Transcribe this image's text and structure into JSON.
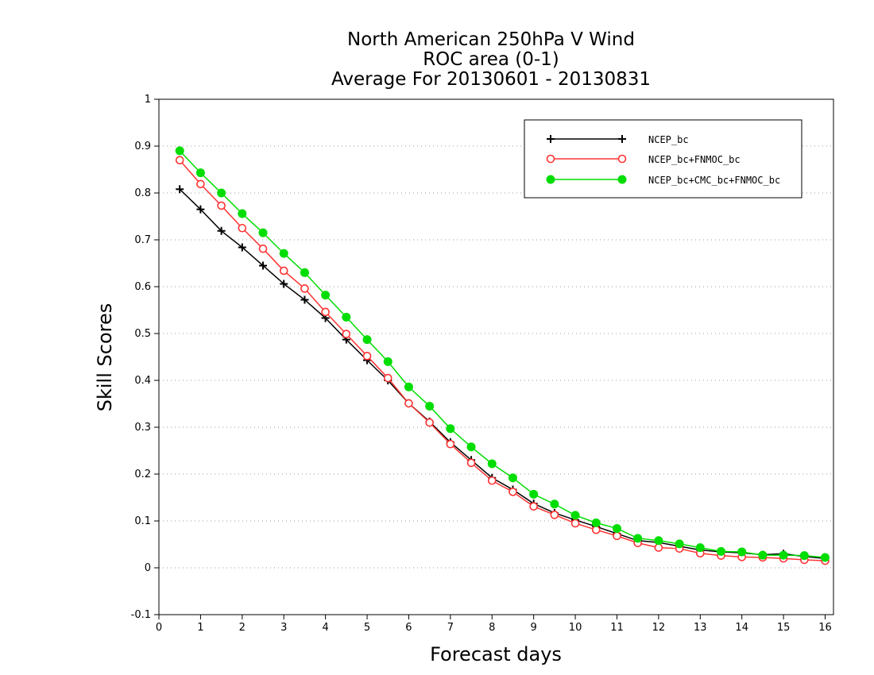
{
  "chart_data": {
    "type": "line",
    "title_lines": [
      "North American 250hPa V Wind",
      "ROC area (0-1)",
      "Average For 20130601 - 20130831"
    ],
    "xlabel": "Forecast days",
    "ylabel": "Skill Scores",
    "xlim": [
      0,
      16.2
    ],
    "ylim": [
      -0.1,
      1
    ],
    "x_ticks": [
      0,
      1,
      2,
      3,
      4,
      5,
      6,
      7,
      8,
      9,
      10,
      11,
      12,
      13,
      14,
      15,
      16
    ],
    "y_ticks": [
      -0.1,
      0,
      0.1,
      0.2,
      0.3,
      0.4,
      0.5,
      0.6,
      0.7,
      0.8,
      0.9,
      1
    ],
    "y_tick_labels": [
      "-0.1",
      "0",
      "0.1",
      "0.2",
      "0.3",
      "0.4",
      "0.5",
      "0.6",
      "0.7",
      "0.8",
      "0.9",
      "1"
    ],
    "grid": "horizontal dotted",
    "legend_position": "top-right",
    "x": [
      0.5,
      1,
      1.5,
      2,
      2.5,
      3,
      3.5,
      4,
      4.5,
      5,
      5.5,
      6,
      6.5,
      7,
      7.5,
      8,
      8.5,
      9,
      9.5,
      10,
      10.5,
      11,
      11.5,
      12,
      12.5,
      13,
      13.5,
      14,
      14.5,
      15,
      15.5,
      16
    ],
    "series": [
      {
        "name": "NCEP_bc",
        "color": "#000000",
        "marker": "plus",
        "values": [
          0.808,
          0.765,
          0.719,
          0.684,
          0.645,
          0.606,
          0.572,
          0.533,
          0.487,
          0.443,
          0.4,
          0.351,
          0.312,
          0.268,
          0.23,
          0.192,
          0.167,
          0.137,
          0.117,
          0.102,
          0.088,
          0.073,
          0.058,
          0.054,
          0.046,
          0.038,
          0.034,
          0.032,
          0.028,
          0.03,
          0.024,
          0.02
        ]
      },
      {
        "name": "NCEP_bc+FNMOC_bc",
        "color": "#ff3333",
        "marker": "open-circle",
        "values": [
          0.87,
          0.819,
          0.773,
          0.725,
          0.681,
          0.634,
          0.596,
          0.546,
          0.499,
          0.452,
          0.405,
          0.351,
          0.31,
          0.264,
          0.224,
          0.186,
          0.162,
          0.131,
          0.113,
          0.095,
          0.081,
          0.068,
          0.053,
          0.043,
          0.041,
          0.031,
          0.026,
          0.023,
          0.022,
          0.02,
          0.017,
          0.015
        ]
      },
      {
        "name": "NCEP_bc+CMC_bc+FNMOC_bc",
        "color": "#00dd00",
        "marker": "filled-circle",
        "values": [
          0.89,
          0.843,
          0.8,
          0.756,
          0.715,
          0.671,
          0.63,
          0.582,
          0.535,
          0.487,
          0.44,
          0.386,
          0.345,
          0.297,
          0.258,
          0.222,
          0.192,
          0.157,
          0.136,
          0.112,
          0.096,
          0.084,
          0.063,
          0.058,
          0.051,
          0.043,
          0.035,
          0.034,
          0.027,
          0.027,
          0.026,
          0.022
        ]
      }
    ]
  }
}
